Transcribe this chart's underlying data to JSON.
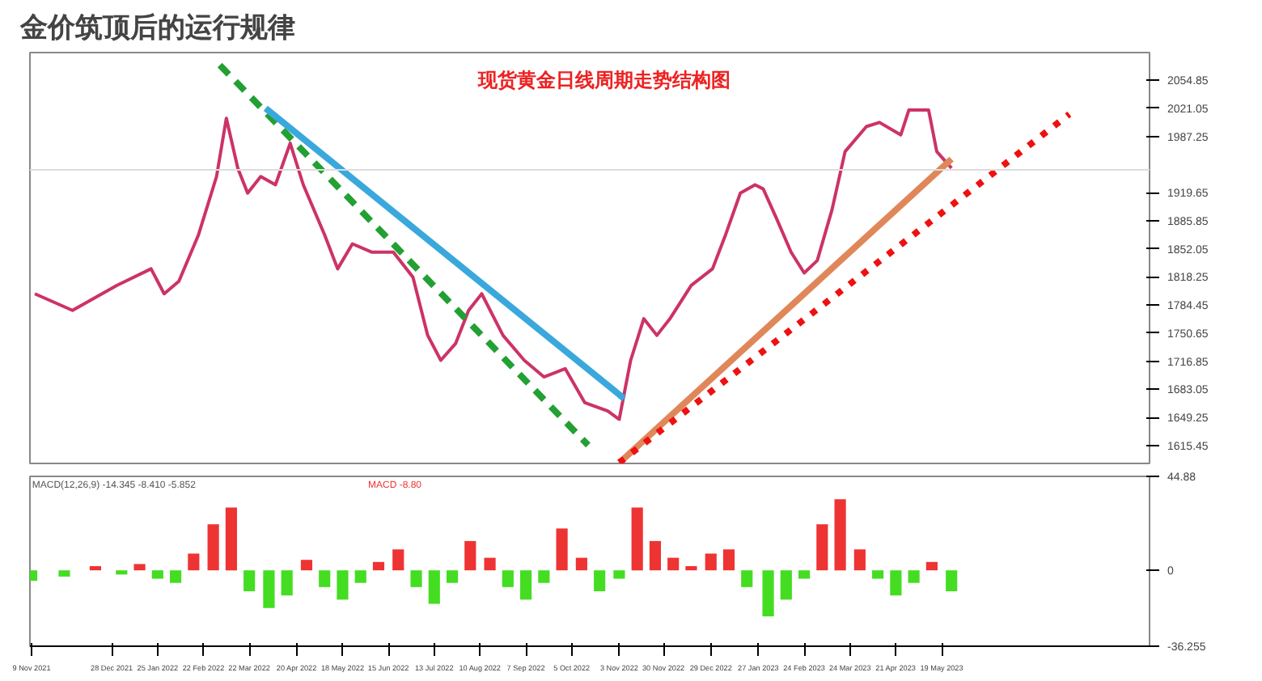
{
  "chart_data": [
    {
      "type": "line",
      "title": "金价筑顶后的运行规律",
      "annotations": [
        "现货黄金日线周期走势结构图"
      ],
      "x": [
        "2021-11-11",
        "2021-12-04",
        "2021-12-31",
        "2022-01-21",
        "2022-01-29",
        "2022-02-07",
        "2022-02-19",
        "2022-03-02",
        "2022-03-08",
        "2022-03-15",
        "2022-03-21",
        "2022-03-29",
        "2022-04-07",
        "2022-04-16",
        "2022-04-24",
        "2022-05-07",
        "2022-05-15",
        "2022-05-24",
        "2022-06-05",
        "2022-06-18",
        "2022-06-30",
        "2022-07-09",
        "2022-07-17",
        "2022-07-26",
        "2022-08-03",
        "2022-08-11",
        "2022-08-24",
        "2022-09-06",
        "2022-09-18",
        "2022-10-01",
        "2022-10-13",
        "2022-10-27",
        "2022-11-03",
        "2022-11-10",
        "2022-11-18",
        "2022-11-26",
        "2022-12-04",
        "2022-12-17",
        "2022-12-30",
        "2023-01-07",
        "2023-01-16",
        "2023-01-25",
        "2023-01-30",
        "2023-02-07",
        "2023-02-16",
        "2023-02-24",
        "2023-03-04",
        "2023-03-13",
        "2023-03-21",
        "2023-04-03",
        "2023-04-11",
        "2023-04-24",
        "2023-04-29",
        "2023-05-11",
        "2023-05-16",
        "2023-05-25"
      ],
      "series": [
        {
          "color": "#cc3366",
          "values": [
            1798,
            1778,
            1808,
            1828,
            1798,
            1813,
            1869,
            1939,
            2009,
            1949,
            1919,
            1939,
            1929,
            1979,
            1929,
            1869,
            1828,
            1858,
            1848,
            1848,
            1818,
            1748,
            1718,
            1738,
            1778,
            1798,
            1748,
            1718,
            1698,
            1708,
            1667,
            1657,
            1647,
            1718,
            1768,
            1748,
            1768,
            1808,
            1828,
            1869,
            1919,
            1929,
            1924,
            1889,
            1848,
            1823,
            1838,
            1899,
            1969,
            1999,
            2004,
            1989,
            2019,
            2019,
            1969,
            1949
          ]
        },
        {
          "type": "line",
          "x": [
            "2022-03-04",
            "2022-10-15"
          ],
          "values": [
            2073,
            1616
          ],
          "color": "#22a033",
          "line_style": "dashed"
        },
        {
          "type": "line",
          "x": [
            "2022-04-01",
            "2022-11-06"
          ],
          "values": [
            2021,
            1672
          ],
          "color": "#3aa8dc",
          "line_style": "solid"
        },
        {
          "type": "line",
          "x": [
            "2022-11-06",
            "2023-05-25"
          ],
          "values": [
            1600,
            1960
          ],
          "color": "#e0875a",
          "line_style": "solid"
        },
        {
          "type": "line",
          "x": [
            "2022-11-03",
            "2023-08-05"
          ],
          "values": [
            1595,
            2014
          ],
          "color": "#ee1111",
          "line_style": "dotted"
        }
      ],
      "xlim": [
        "2021-11-08",
        "2023-09-23"
      ],
      "ylim": [
        1594,
        2088
      ],
      "yticks": [
        2054.85,
        2021.05,
        1987.25,
        1919.65,
        1885.85,
        1852.05,
        1818.25,
        1784.45,
        1750.65,
        1716.85,
        1683.05,
        1649.25,
        1615.45
      ],
      "ref_lines": [
        {
          "axis": "y",
          "value": 1947,
          "color": "#dddddd"
        }
      ],
      "tick_labels": "y",
      "grid": false
    },
    {
      "type": "bar",
      "annotations": [
        "MACD(12,26,9) -14.345 -8.410 -5.852",
        "MACD -8.80"
      ],
      "x": [
        "2021-11-09",
        "2021-11-29",
        "2021-12-18",
        "2022-01-03",
        "2022-01-14",
        "2022-01-25",
        "2022-02-05",
        "2022-02-16",
        "2022-02-28",
        "2022-03-11",
        "2022-03-22",
        "2022-04-03",
        "2022-04-14",
        "2022-04-26",
        "2022-05-07",
        "2022-05-18",
        "2022-05-29",
        "2022-06-09",
        "2022-06-21",
        "2022-07-02",
        "2022-07-13",
        "2022-07-24",
        "2022-08-04",
        "2022-08-16",
        "2022-08-27",
        "2022-09-07",
        "2022-09-18",
        "2022-09-29",
        "2022-10-11",
        "2022-10-22",
        "2022-11-03",
        "2022-11-14",
        "2022-11-25",
        "2022-12-06",
        "2022-12-17",
        "2022-12-29",
        "2023-01-09",
        "2023-01-20",
        "2023-02-02",
        "2023-02-13",
        "2023-02-24",
        "2023-03-07",
        "2023-03-18",
        "2023-03-30",
        "2023-04-10",
        "2023-04-21",
        "2023-05-02",
        "2023-05-13",
        "2023-05-25"
      ],
      "values": [
        -5,
        -3,
        2,
        -2,
        3,
        -4,
        -6,
        8,
        22,
        30,
        -10,
        -18,
        -12,
        5,
        -8,
        -14,
        -6,
        4,
        10,
        -8,
        -16,
        -6,
        14,
        6,
        -8,
        -14,
        -6,
        20,
        6,
        -10,
        -4,
        30,
        14,
        6,
        2,
        8,
        10,
        -8,
        -22,
        -14,
        -4,
        22,
        34,
        10,
        -4,
        -12,
        -6,
        4,
        -10
      ],
      "colors": [
        "#44dd22",
        "#44dd22",
        "#ee3333",
        "#44dd22",
        "#ee3333",
        "#44dd22",
        "#44dd22",
        "#ee3333",
        "#ee3333",
        "#ee3333",
        "#44dd22",
        "#44dd22",
        "#44dd22",
        "#ee3333",
        "#44dd22",
        "#44dd22",
        "#44dd22",
        "#ee3333",
        "#ee3333",
        "#44dd22",
        "#44dd22",
        "#44dd22",
        "#ee3333",
        "#ee3333",
        "#44dd22",
        "#44dd22",
        "#44dd22",
        "#ee3333",
        "#ee3333",
        "#44dd22",
        "#44dd22",
        "#ee3333",
        "#ee3333",
        "#ee3333",
        "#ee3333",
        "#ee3333",
        "#ee3333",
        "#44dd22",
        "#44dd22",
        "#44dd22",
        "#44dd22",
        "#ee3333",
        "#ee3333",
        "#ee3333",
        "#44dd22",
        "#44dd22",
        "#44dd22",
        "#ee3333",
        "#44dd22"
      ],
      "xlim": [
        "2021-11-08",
        "2023-09-23"
      ],
      "ylim": [
        -36.255,
        44.88
      ],
      "yticks": [
        44.88,
        0,
        -36.255
      ],
      "xticks": [
        {
          "value": "2021-11-09",
          "label": "9 Nov 2021"
        },
        {
          "value": "2021-12-28",
          "label": "28 Dec 2021"
        },
        {
          "value": "2022-01-25",
          "label": "25 Jan 2022"
        },
        {
          "value": "2022-02-22",
          "label": "22 Feb 2022"
        },
        {
          "value": "2022-03-22",
          "label": "22 Mar 2022"
        },
        {
          "value": "2022-04-20",
          "label": "20 Apr 2022"
        },
        {
          "value": "2022-05-18",
          "label": "18 May 2022"
        },
        {
          "value": "2022-06-15",
          "label": "15 Jun 2022"
        },
        {
          "value": "2022-07-13",
          "label": "13 Jul 2022"
        },
        {
          "value": "2022-08-10",
          "label": "10 Aug 2022"
        },
        {
          "value": "2022-09-07",
          "label": "7 Sep 2022"
        },
        {
          "value": "2022-10-05",
          "label": "5 Oct 2022"
        },
        {
          "value": "2022-11-03",
          "label": "3 Nov 2022"
        },
        {
          "value": "2022-11-30",
          "label": "30 Nov 2022"
        },
        {
          "value": "2022-12-29",
          "label": "29 Dec 2022"
        },
        {
          "value": "2023-01-27",
          "label": "27 Jan 2023"
        },
        {
          "value": "2023-02-24",
          "label": "24 Feb 2023"
        },
        {
          "value": "2023-03-24",
          "label": "24 Mar 2023"
        },
        {
          "value": "2023-04-21",
          "label": "21 Apr 2023"
        },
        {
          "value": "2023-05-19",
          "label": "19 May 2023"
        }
      ],
      "grid": false
    }
  ]
}
